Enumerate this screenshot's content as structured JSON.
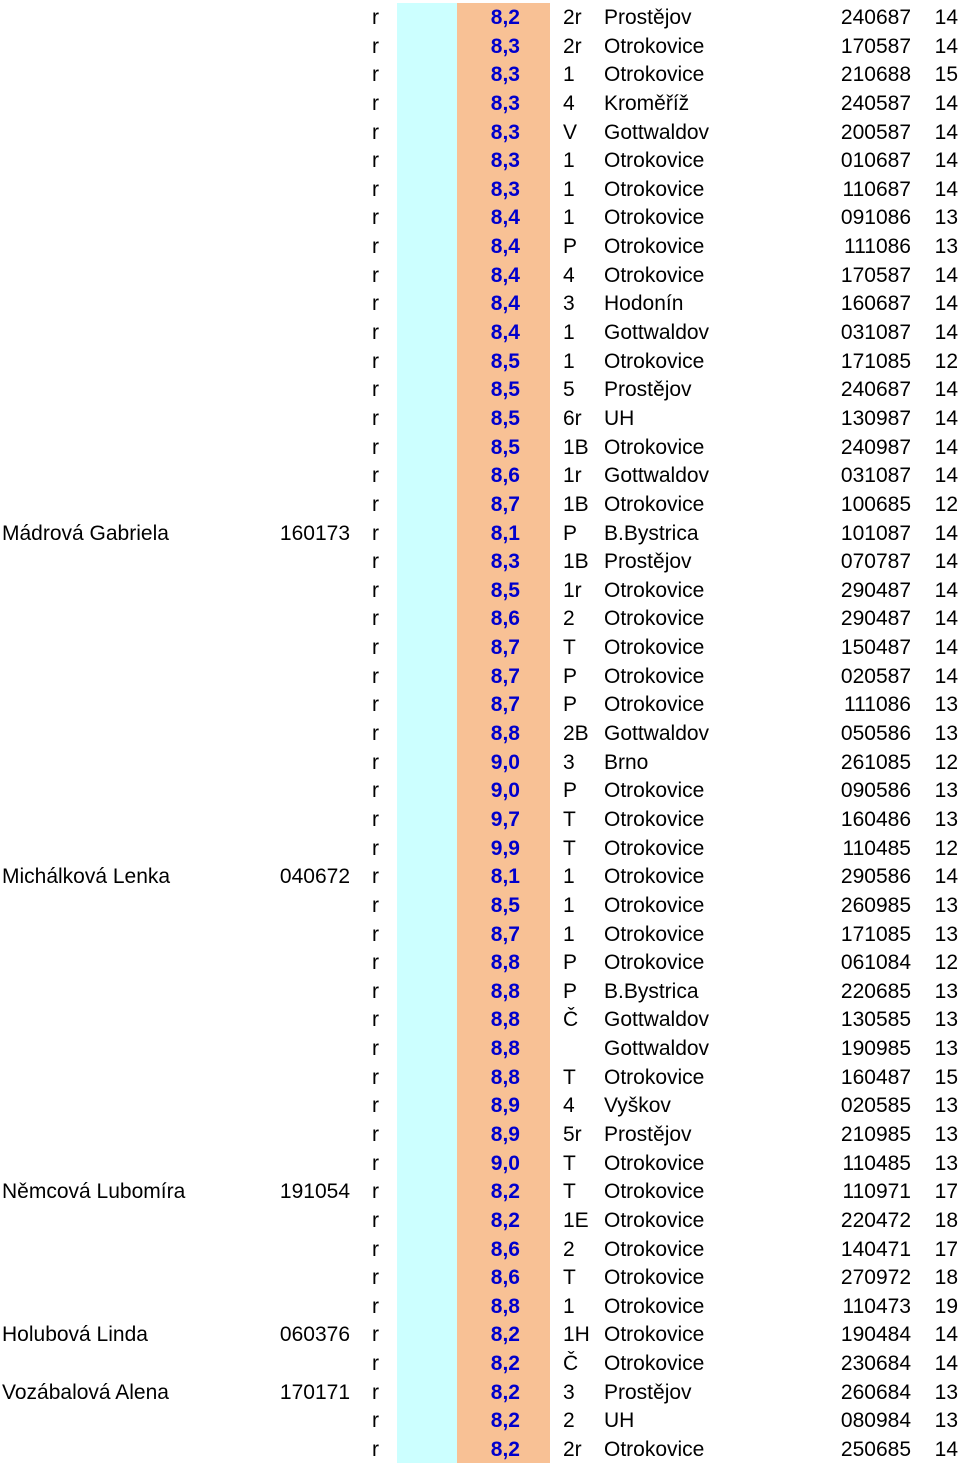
{
  "results": [
    {
      "name": "",
      "id": "",
      "cat": "r",
      "time": "8,2",
      "place": "2r",
      "city": "Prostějov",
      "date": "240687",
      "age": "14"
    },
    {
      "name": "",
      "id": "",
      "cat": "r",
      "time": "8,3",
      "place": "2r",
      "city": "Otrokovice",
      "date": "170587",
      "age": "14"
    },
    {
      "name": "",
      "id": "",
      "cat": "r",
      "time": "8,3",
      "place": "1",
      "city": "Otrokovice",
      "date": "210688",
      "age": "15"
    },
    {
      "name": "",
      "id": "",
      "cat": "r",
      "time": "8,3",
      "place": "4",
      "city": "Kroměříž",
      "date": "240587",
      "age": "14"
    },
    {
      "name": "",
      "id": "",
      "cat": "r",
      "time": "8,3",
      "place": "V",
      "city": "Gottwaldov",
      "date": "200587",
      "age": "14"
    },
    {
      "name": "",
      "id": "",
      "cat": "r",
      "time": "8,3",
      "place": "1",
      "city": "Otrokovice",
      "date": "010687",
      "age": "14"
    },
    {
      "name": "",
      "id": "",
      "cat": "r",
      "time": "8,3",
      "place": "1",
      "city": "Otrokovice",
      "date": "110687",
      "age": "14"
    },
    {
      "name": "",
      "id": "",
      "cat": "r",
      "time": "8,4",
      "place": "1",
      "city": "Otrokovice",
      "date": "091086",
      "age": "13"
    },
    {
      "name": "",
      "id": "",
      "cat": "r",
      "time": "8,4",
      "place": "P",
      "city": "Otrokovice",
      "date": "111086",
      "age": "13"
    },
    {
      "name": "",
      "id": "",
      "cat": "r",
      "time": "8,4",
      "place": "4",
      "city": "Otrokovice",
      "date": "170587",
      "age": "14"
    },
    {
      "name": "",
      "id": "",
      "cat": "r",
      "time": "8,4",
      "place": "3",
      "city": "Hodonín",
      "date": "160687",
      "age": "14"
    },
    {
      "name": "",
      "id": "",
      "cat": "r",
      "time": "8,4",
      "place": "1",
      "city": "Gottwaldov",
      "date": "031087",
      "age": "14"
    },
    {
      "name": "",
      "id": "",
      "cat": "r",
      "time": "8,5",
      "place": "1",
      "city": "Otrokovice",
      "date": "171085",
      "age": "12"
    },
    {
      "name": "",
      "id": "",
      "cat": "r",
      "time": "8,5",
      "place": "5",
      "city": "Prostějov",
      "date": "240687",
      "age": "14"
    },
    {
      "name": "",
      "id": "",
      "cat": "r",
      "time": "8,5",
      "place": "6r",
      "city": "UH",
      "date": "130987",
      "age": "14"
    },
    {
      "name": "",
      "id": "",
      "cat": "r",
      "time": "8,5",
      "place": "1B",
      "city": "Otrokovice",
      "date": "240987",
      "age": "14"
    },
    {
      "name": "",
      "id": "",
      "cat": "r",
      "time": "8,6",
      "place": "1r",
      "city": "Gottwaldov",
      "date": "031087",
      "age": "14"
    },
    {
      "name": "",
      "id": "",
      "cat": "r",
      "time": "8,7",
      "place": "1B",
      "city": "Otrokovice",
      "date": "100685",
      "age": "12"
    },
    {
      "name": "Mádrová Gabriela",
      "id": "160173",
      "cat": "r",
      "time": "8,1",
      "place": "P",
      "city": "B.Bystrica",
      "date": "101087",
      "age": "14"
    },
    {
      "name": "",
      "id": "",
      "cat": "r",
      "time": "8,3",
      "place": "1B",
      "city": "Prostějov",
      "date": "070787",
      "age": "14"
    },
    {
      "name": "",
      "id": "",
      "cat": "r",
      "time": "8,5",
      "place": "1r",
      "city": "Otrokovice",
      "date": "290487",
      "age": "14"
    },
    {
      "name": "",
      "id": "",
      "cat": "r",
      "time": "8,6",
      "place": "2",
      "city": "Otrokovice",
      "date": "290487",
      "age": "14"
    },
    {
      "name": "",
      "id": "",
      "cat": "r",
      "time": "8,7",
      "place": "T",
      "city": "Otrokovice",
      "date": "150487",
      "age": "14"
    },
    {
      "name": "",
      "id": "",
      "cat": "r",
      "time": "8,7",
      "place": "P",
      "city": "Otrokovice",
      "date": "020587",
      "age": "14"
    },
    {
      "name": "",
      "id": "",
      "cat": "r",
      "time": "8,7",
      "place": "P",
      "city": "Otrokovice",
      "date": "111086",
      "age": "13"
    },
    {
      "name": "",
      "id": "",
      "cat": "r",
      "time": "8,8",
      "place": "2B",
      "city": "Gottwaldov",
      "date": "050586",
      "age": "13"
    },
    {
      "name": "",
      "id": "",
      "cat": "r",
      "time": "9,0",
      "place": "3",
      "city": "Brno",
      "date": "261085",
      "age": "12"
    },
    {
      "name": "",
      "id": "",
      "cat": "r",
      "time": "9,0",
      "place": "P",
      "city": "Otrokovice",
      "date": "090586",
      "age": "13"
    },
    {
      "name": "",
      "id": "",
      "cat": "r",
      "time": "9,7",
      "place": "T",
      "city": "Otrokovice",
      "date": "160486",
      "age": "13"
    },
    {
      "name": "",
      "id": "",
      "cat": "r",
      "time": "9,9",
      "place": "T",
      "city": "Otrokovice",
      "date": "110485",
      "age": "12"
    },
    {
      "name": "Michálková Lenka",
      "id": "040672",
      "cat": "r",
      "time": "8,1",
      "place": "1",
      "city": "Otrokovice",
      "date": "290586",
      "age": "14"
    },
    {
      "name": "",
      "id": "",
      "cat": "r",
      "time": "8,5",
      "place": "1",
      "city": "Otrokovice",
      "date": "260985",
      "age": "13"
    },
    {
      "name": "",
      "id": "",
      "cat": "r",
      "time": "8,7",
      "place": "1",
      "city": "Otrokovice",
      "date": "171085",
      "age": "13"
    },
    {
      "name": "",
      "id": "",
      "cat": "r",
      "time": "8,8",
      "place": "P",
      "city": "Otrokovice",
      "date": "061084",
      "age": "12"
    },
    {
      "name": "",
      "id": "",
      "cat": "r",
      "time": "8,8",
      "place": "P",
      "city": "B.Bystrica",
      "date": "220685",
      "age": "13"
    },
    {
      "name": "",
      "id": "",
      "cat": "r",
      "time": "8,8",
      "place": "Č",
      "city": "Gottwaldov",
      "date": "130585",
      "age": "13"
    },
    {
      "name": "",
      "id": "",
      "cat": "r",
      "time": "8,8",
      "place": "",
      "city": "Gottwaldov",
      "date": "190985",
      "age": "13"
    },
    {
      "name": "",
      "id": "",
      "cat": "r",
      "time": "8,8",
      "place": "T",
      "city": "Otrokovice",
      "date": "160487",
      "age": "15"
    },
    {
      "name": "",
      "id": "",
      "cat": "r",
      "time": "8,9",
      "place": "4",
      "city": "Vyškov",
      "date": "020585",
      "age": "13"
    },
    {
      "name": "",
      "id": "",
      "cat": "r",
      "time": "8,9",
      "place": "5r",
      "city": "Prostějov",
      "date": "210985",
      "age": "13"
    },
    {
      "name": "",
      "id": "",
      "cat": "r",
      "time": "9,0",
      "place": "T",
      "city": "Otrokovice",
      "date": "110485",
      "age": "13"
    },
    {
      "name": "Němcová Lubomíra",
      "id": "191054",
      "cat": "r",
      "time": "8,2",
      "place": "T",
      "city": "Otrokovice",
      "date": "110971",
      "age": "17"
    },
    {
      "name": "",
      "id": "",
      "cat": "r",
      "time": "8,2",
      "place": "1E",
      "city": "Otrokovice",
      "date": "220472",
      "age": "18"
    },
    {
      "name": "",
      "id": "",
      "cat": "r",
      "time": "8,6",
      "place": "2",
      "city": "Otrokovice",
      "date": "140471",
      "age": "17"
    },
    {
      "name": "",
      "id": "",
      "cat": "r",
      "time": "8,6",
      "place": "T",
      "city": "Otrokovice",
      "date": "270972",
      "age": "18"
    },
    {
      "name": "",
      "id": "",
      "cat": "r",
      "time": "8,8",
      "place": "1",
      "city": "Otrokovice",
      "date": "110473",
      "age": "19"
    },
    {
      "name": "Holubová Linda",
      "id": "060376",
      "cat": "r",
      "time": "8,2",
      "place": "1H",
      "city": "Otrokovice",
      "date": "190484",
      "age": "14"
    },
    {
      "name": "",
      "id": "",
      "cat": "r",
      "time": "8,2",
      "place": "Č",
      "city": "Otrokovice",
      "date": "230684",
      "age": "14"
    },
    {
      "name": "Vozábalová Alena",
      "id": "170171",
      "cat": "r",
      "time": "8,2",
      "place": "3",
      "city": "Prostějov",
      "date": "260684",
      "age": "13"
    },
    {
      "name": "",
      "id": "",
      "cat": "r",
      "time": "8,2",
      "place": "2",
      "city": "UH",
      "date": "080984",
      "age": "13"
    },
    {
      "name": "",
      "id": "",
      "cat": "r",
      "time": "8,2",
      "place": "2r",
      "city": "Otrokovice",
      "date": "250685",
      "age": "14"
    }
  ]
}
